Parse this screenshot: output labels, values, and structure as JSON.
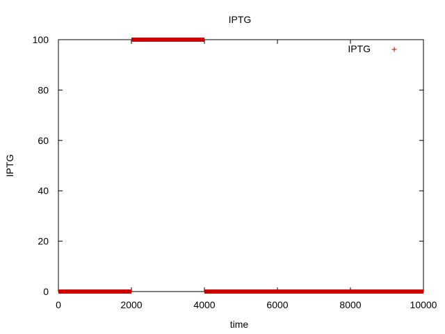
{
  "chart_data": {
    "type": "scatter",
    "title": "IPTG",
    "xlabel": "time",
    "ylabel": "IPTG",
    "xlim": [
      0,
      10000
    ],
    "ylim": [
      0,
      100
    ],
    "x_ticks": [
      0,
      2000,
      4000,
      6000,
      8000,
      10000
    ],
    "y_ticks": [
      0,
      20,
      40,
      60,
      80,
      100
    ],
    "grid": false,
    "legend_position": "top-right",
    "series": [
      {
        "name": "IPTG",
        "color": "#cc0000",
        "marker": "+",
        "segments": [
          {
            "x_start": 0,
            "x_end": 2000,
            "y": 0
          },
          {
            "x_start": 2000,
            "x_end": 4000,
            "y": 100
          },
          {
            "x_start": 4000,
            "x_end": 10000,
            "y": 0
          }
        ]
      }
    ]
  }
}
